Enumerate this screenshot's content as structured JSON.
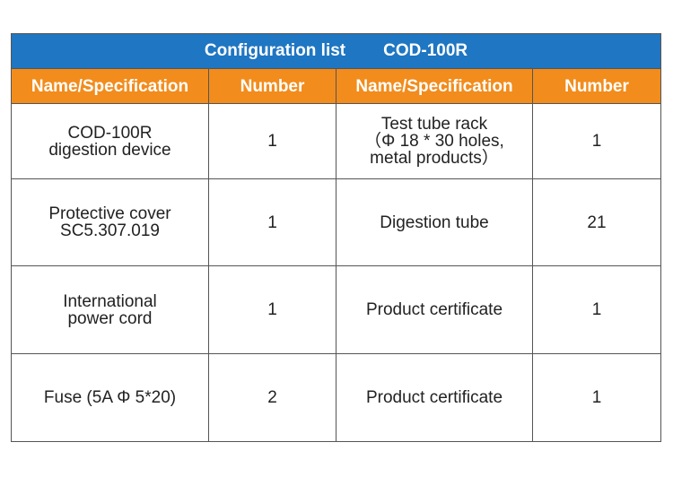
{
  "title": {
    "label": "Configuration list",
    "model": "COD-100R"
  },
  "headers": [
    "Name/Specification",
    "Number",
    "Name/Specification",
    "Number"
  ],
  "rows": [
    {
      "name1": "COD-100R\ndigestion device",
      "num1": "1",
      "name2": "Test tube rack\n（Φ 18 * 30 holes,\nmetal products）",
      "num2": "1"
    },
    {
      "name1": "Protective cover\nSC5.307.019",
      "num1": "1",
      "name2": "Digestion tube",
      "num2": "21"
    },
    {
      "name1": "International\npower cord",
      "num1": "1",
      "name2": "Product certificate",
      "num2": "1"
    },
    {
      "name1": "Fuse (5A Φ 5*20)",
      "num1": "2",
      "name2": "Product certificate",
      "num2": "1"
    }
  ]
}
